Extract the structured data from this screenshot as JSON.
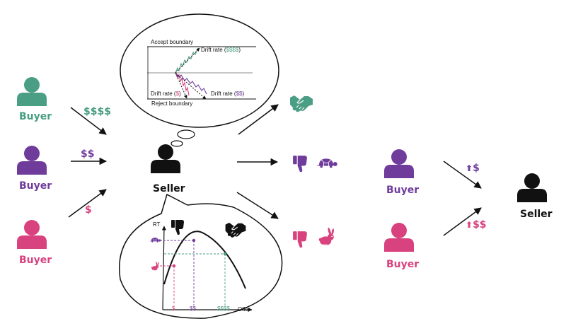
{
  "colors": {
    "green": "#4a9e83",
    "purple": "#6f3c9c",
    "pink": "#d8427f",
    "black": "#111111",
    "gray": "#666666"
  },
  "left": {
    "buyers": [
      {
        "label": "Buyer",
        "color": "#4a9e83",
        "offer": "$$$$"
      },
      {
        "label": "Buyer",
        "color": "#6f3c9c",
        "offer": "$$"
      },
      {
        "label": "Buyer",
        "color": "#d8427f",
        "offer": "$"
      }
    ],
    "seller": {
      "label": "Seller"
    }
  },
  "thought_bubble": {
    "accept_boundary": "Accept boundary",
    "reject_boundary": "Reject boundary",
    "drift_green": {
      "text": "Drift rate (",
      "value": "$$$$",
      "close": ")"
    },
    "drift_pink": {
      "text": "Drift rate (",
      "value": "$",
      "close": ")"
    },
    "drift_purple": {
      "text": "Drift rate (",
      "value": "$$",
      "close": ")"
    }
  },
  "speech_bubble": {
    "ylabel": "RT",
    "xlabel": "Offer",
    "ticks": [
      {
        "label": "$",
        "color": "#d8427f"
      },
      {
        "label": "$$",
        "color": "#6f3c9c"
      },
      {
        "label": "$$$$",
        "color": "#4a9e83"
      }
    ],
    "icons": [
      "thumbs-down",
      "handshake",
      "turtle",
      "rabbit"
    ]
  },
  "outcomes": [
    {
      "name": "accept",
      "icons": [
        "handshake-icon"
      ],
      "color": "#4a9e83"
    },
    {
      "name": "slow-reject",
      "icons": [
        "thumbs-down-icon",
        "turtle-icon"
      ],
      "color": "#6f3c9c"
    },
    {
      "name": "fast-reject",
      "icons": [
        "thumbs-down-icon",
        "rabbit-icon"
      ],
      "color": "#d8427f"
    }
  ],
  "right": {
    "buyers": [
      {
        "label": "Buyer",
        "color": "#6f3c9c",
        "offer": "$",
        "arrow": "⬆"
      },
      {
        "label": "Buyer",
        "color": "#d8427f",
        "offer": "$$",
        "arrow": "⬆"
      }
    ],
    "seller": {
      "label": "Seller"
    }
  }
}
